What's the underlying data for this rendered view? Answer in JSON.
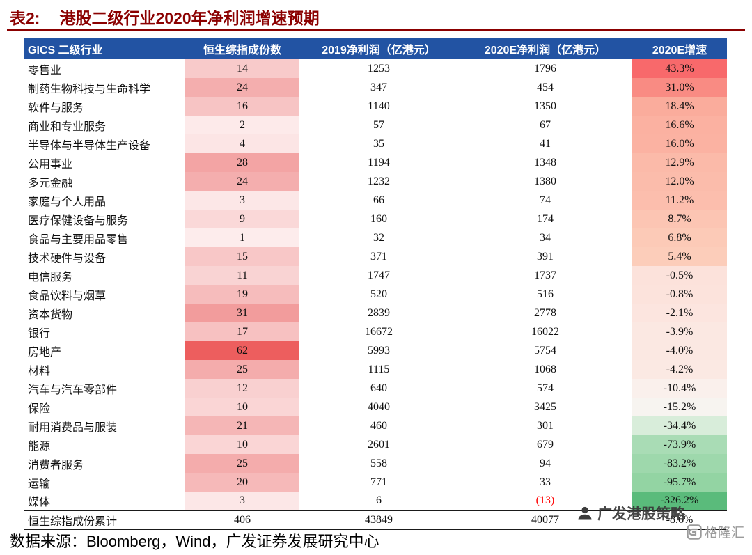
{
  "title": {
    "label": "表2:",
    "text": "港股二级行业2020年净利润增速预期"
  },
  "colors": {
    "title": "#8B0000",
    "header_bg": "#2253A3",
    "header_text": "#FFFFFF",
    "negative_value": "#FF0000",
    "count_scale_max": "#ED5E5E",
    "growth_scale_positive": "#F8696B",
    "growth_scale_negative": "#5ABB7B"
  },
  "table": {
    "headers": [
      "GICS 二级行业",
      "恒生综指成份数",
      "2019净利润（亿港元）",
      "2020E净利润（亿港元）",
      "2020E增速"
    ],
    "rows": [
      {
        "industry": "零售业",
        "count": "14",
        "profit2019": "1253",
        "profit2020e": "1796",
        "growth": "43.3%",
        "count_bg": "#F8CACA",
        "growth_bg": "#F8696B"
      },
      {
        "industry": "制药生物科技与生命科学",
        "count": "24",
        "profit2019": "347",
        "profit2020e": "454",
        "growth": "31.0%",
        "count_bg": "#F4AEAE",
        "growth_bg": "#F98B83"
      },
      {
        "industry": "软件与服务",
        "count": "16",
        "profit2019": "1140",
        "profit2020e": "1350",
        "growth": "18.4%",
        "count_bg": "#F7C4C4",
        "growth_bg": "#FAAC9C"
      },
      {
        "industry": "商业和专业服务",
        "count": "2",
        "profit2019": "57",
        "profit2020e": "67",
        "growth": "16.6%",
        "count_bg": "#FDEAEA",
        "growth_bg": "#FBB1A1"
      },
      {
        "industry": "半导体与半导体生产设备",
        "count": "4",
        "profit2019": "35",
        "profit2020e": "41",
        "growth": "16.0%",
        "count_bg": "#FCE5E5",
        "growth_bg": "#FBB2A2"
      },
      {
        "industry": "公用事业",
        "count": "28",
        "profit2019": "1194",
        "profit2020e": "1348",
        "growth": "12.9%",
        "count_bg": "#F3A4A4",
        "growth_bg": "#FBBAA9"
      },
      {
        "industry": "多元金融",
        "count": "24",
        "profit2019": "1232",
        "profit2020e": "1380",
        "growth": "12.0%",
        "count_bg": "#F4AEAE",
        "growth_bg": "#FBBCAB"
      },
      {
        "industry": "家庭与个人用品",
        "count": "3",
        "profit2019": "66",
        "profit2020e": "74",
        "growth": "11.2%",
        "count_bg": "#FCE7E7",
        "growth_bg": "#FCBEAD"
      },
      {
        "industry": "医疗保健设备与服务",
        "count": "9",
        "profit2019": "160",
        "profit2020e": "174",
        "growth": "8.7%",
        "count_bg": "#FAD8D8",
        "growth_bg": "#FCC5B3"
      },
      {
        "industry": "食品与主要用品零售",
        "count": "1",
        "profit2019": "32",
        "profit2020e": "34",
        "growth": "6.8%",
        "count_bg": "#FDECEC",
        "growth_bg": "#FCCAB7"
      },
      {
        "industry": "技术硬件与设备",
        "count": "15",
        "profit2019": "371",
        "profit2020e": "391",
        "growth": "5.4%",
        "count_bg": "#F8C7C7",
        "growth_bg": "#FCCDBA"
      },
      {
        "industry": "电信服务",
        "count": "11",
        "profit2019": "1747",
        "profit2020e": "1737",
        "growth": "-0.5%",
        "count_bg": "#F9D3D3",
        "growth_bg": "#FCE2DB"
      },
      {
        "industry": "食品饮料与烟草",
        "count": "19",
        "profit2019": "520",
        "profit2020e": "516",
        "growth": "-0.8%",
        "count_bg": "#F6BCBC",
        "growth_bg": "#FCE3DC"
      },
      {
        "industry": "资本货物",
        "count": "31",
        "profit2019": "2839",
        "profit2020e": "2778",
        "growth": "-2.1%",
        "count_bg": "#F29C9C",
        "growth_bg": "#FCE5DF"
      },
      {
        "industry": "银行",
        "count": "17",
        "profit2019": "16672",
        "profit2020e": "16022",
        "growth": "-3.9%",
        "count_bg": "#F7C1C1",
        "growth_bg": "#FBE8E2"
      },
      {
        "industry": "房地产",
        "count": "62",
        "profit2019": "5993",
        "profit2020e": "5754",
        "growth": "-4.0%",
        "count_bg": "#ED5E5E",
        "growth_bg": "#FBE8E2"
      },
      {
        "industry": "材料",
        "count": "25",
        "profit2019": "1115",
        "profit2020e": "1068",
        "growth": "-4.2%",
        "count_bg": "#F4ACAC",
        "growth_bg": "#FBE9E3"
      },
      {
        "industry": "汽车与汽车零部件",
        "count": "12",
        "profit2019": "640",
        "profit2020e": "574",
        "growth": "-10.4%",
        "count_bg": "#F9D0D0",
        "growth_bg": "#FAF0EC"
      },
      {
        "industry": "保险",
        "count": "10",
        "profit2019": "4040",
        "profit2020e": "3425",
        "growth": "-15.2%",
        "count_bg": "#FAD5D5",
        "growth_bg": "#F7F4F0"
      },
      {
        "industry": "耐用消费品与服装",
        "count": "21",
        "profit2019": "460",
        "profit2020e": "301",
        "growth": "-34.4%",
        "count_bg": "#F5B6B6",
        "growth_bg": "#D8EDDA"
      },
      {
        "industry": "能源",
        "count": "10",
        "profit2019": "2601",
        "profit2020e": "679",
        "growth": "-73.9%",
        "count_bg": "#FAD5D5",
        "growth_bg": "#A9DCB5"
      },
      {
        "industry": "消费者服务",
        "count": "25",
        "profit2019": "558",
        "profit2020e": "94",
        "growth": "-83.2%",
        "count_bg": "#F4ACAC",
        "growth_bg": "#9ED8AC"
      },
      {
        "industry": "运输",
        "count": "20",
        "profit2019": "771",
        "profit2020e": "33",
        "growth": "-95.7%",
        "count_bg": "#F6B9B9",
        "growth_bg": "#93D4A3"
      },
      {
        "industry": "媒体",
        "count": "3",
        "profit2019": "6",
        "profit2020e": "(13)",
        "growth": "-326.2%",
        "count_bg": "#FCE7E7",
        "growth_bg": "#5ABB7B",
        "value_color": "#FF0000"
      },
      {
        "industry": "恒生综指成份累计",
        "count": "406",
        "profit2019": "43849",
        "profit2020e": "40077",
        "growth": "-8.6%",
        "total": true
      }
    ]
  },
  "footer": {
    "source": "数据来源：Bloomberg，Wind，广发证券发展研究中心"
  },
  "watermark": {
    "brand": "广发港股策略",
    "logo": "格隆汇"
  }
}
